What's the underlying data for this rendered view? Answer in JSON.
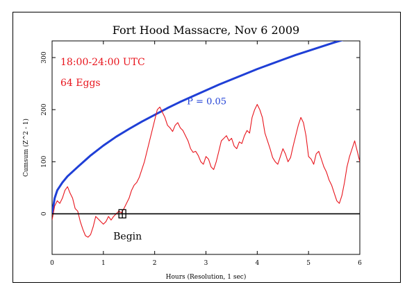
{
  "chart_data": {
    "type": "line",
    "title": "Fort Hood Massacre, Nov 6 2009",
    "xlabel": "Hours (Resolution, 1 sec)",
    "ylabel": "Cumsum (Z^2 - 1)",
    "xlim": [
      0,
      6
    ],
    "ylim": [
      -78,
      332
    ],
    "x_ticks": [
      0,
      1,
      2,
      3,
      4,
      5,
      6
    ],
    "y_ticks": [
      0,
      100,
      200,
      300
    ],
    "grid": false,
    "annotations": {
      "time_window": "18:00-24:00 UTC",
      "eggs": "64 Eggs",
      "p_label": "P = 0.05",
      "begin_label": "Begin"
    },
    "begin_marker": {
      "x": 1.37,
      "y": 0
    },
    "series": [
      {
        "role": "p-envelope",
        "color": "#1f3fd6",
        "x": [
          0.0,
          0.05,
          0.1,
          0.2,
          0.3,
          0.5,
          0.75,
          1.0,
          1.25,
          1.5,
          1.75,
          2.0,
          2.25,
          2.5,
          2.75,
          3.0,
          3.25,
          3.5,
          3.75,
          4.0,
          4.25,
          4.5,
          4.75,
          5.0,
          5.25,
          5.5,
          5.75,
          5.95
        ],
        "y": [
          0,
          30,
          45,
          60,
          72,
          90,
          112,
          131,
          148,
          163,
          177,
          190,
          203,
          215,
          226,
          237,
          248,
          258,
          268,
          278,
          287,
          296,
          305,
          313,
          321,
          329,
          336,
          342
        ]
      },
      {
        "role": "cumsum",
        "color": "#e8141c",
        "x": [
          0.0,
          0.05,
          0.1,
          0.15,
          0.2,
          0.25,
          0.3,
          0.35,
          0.4,
          0.45,
          0.5,
          0.55,
          0.6,
          0.65,
          0.7,
          0.75,
          0.8,
          0.85,
          0.9,
          0.95,
          1.0,
          1.05,
          1.1,
          1.15,
          1.2,
          1.25,
          1.3,
          1.35,
          1.4,
          1.45,
          1.5,
          1.55,
          1.6,
          1.65,
          1.7,
          1.75,
          1.8,
          1.85,
          1.9,
          1.95,
          2.0,
          2.05,
          2.1,
          2.15,
          2.2,
          2.25,
          2.3,
          2.35,
          2.4,
          2.45,
          2.5,
          2.55,
          2.6,
          2.65,
          2.7,
          2.75,
          2.8,
          2.85,
          2.9,
          2.95,
          3.0,
          3.05,
          3.1,
          3.15,
          3.2,
          3.25,
          3.3,
          3.35,
          3.4,
          3.45,
          3.5,
          3.55,
          3.6,
          3.65,
          3.7,
          3.75,
          3.8,
          3.85,
          3.9,
          3.95,
          4.0,
          4.05,
          4.1,
          4.15,
          4.2,
          4.25,
          4.3,
          4.35,
          4.4,
          4.45,
          4.5,
          4.55,
          4.6,
          4.65,
          4.7,
          4.75,
          4.8,
          4.85,
          4.9,
          4.95,
          5.0,
          5.05,
          5.1,
          5.15,
          5.2,
          5.25,
          5.3,
          5.35,
          5.4,
          5.45,
          5.5,
          5.55,
          5.6,
          5.65,
          5.7,
          5.75,
          5.8,
          5.85,
          5.9,
          5.95,
          6.0
        ],
        "y": [
          -12,
          15,
          25,
          20,
          30,
          45,
          52,
          40,
          30,
          10,
          5,
          -15,
          -30,
          -42,
          -45,
          -40,
          -25,
          -5,
          -10,
          -15,
          -20,
          -15,
          -5,
          -12,
          -5,
          0,
          5,
          2,
          10,
          20,
          30,
          45,
          55,
          60,
          70,
          85,
          100,
          120,
          140,
          160,
          180,
          200,
          205,
          195,
          185,
          170,
          165,
          158,
          170,
          175,
          165,
          160,
          150,
          140,
          125,
          118,
          120,
          112,
          100,
          95,
          110,
          105,
          90,
          85,
          100,
          120,
          140,
          145,
          150,
          140,
          145,
          130,
          125,
          138,
          135,
          150,
          160,
          155,
          185,
          200,
          210,
          200,
          185,
          155,
          140,
          125,
          108,
          100,
          95,
          110,
          125,
          115,
          100,
          108,
          130,
          150,
          170,
          185,
          175,
          150,
          110,
          105,
          95,
          115,
          120,
          105,
          90,
          80,
          65,
          55,
          40,
          25,
          20,
          35,
          60,
          90,
          110,
          125,
          140,
          120,
          100
        ]
      }
    ]
  }
}
